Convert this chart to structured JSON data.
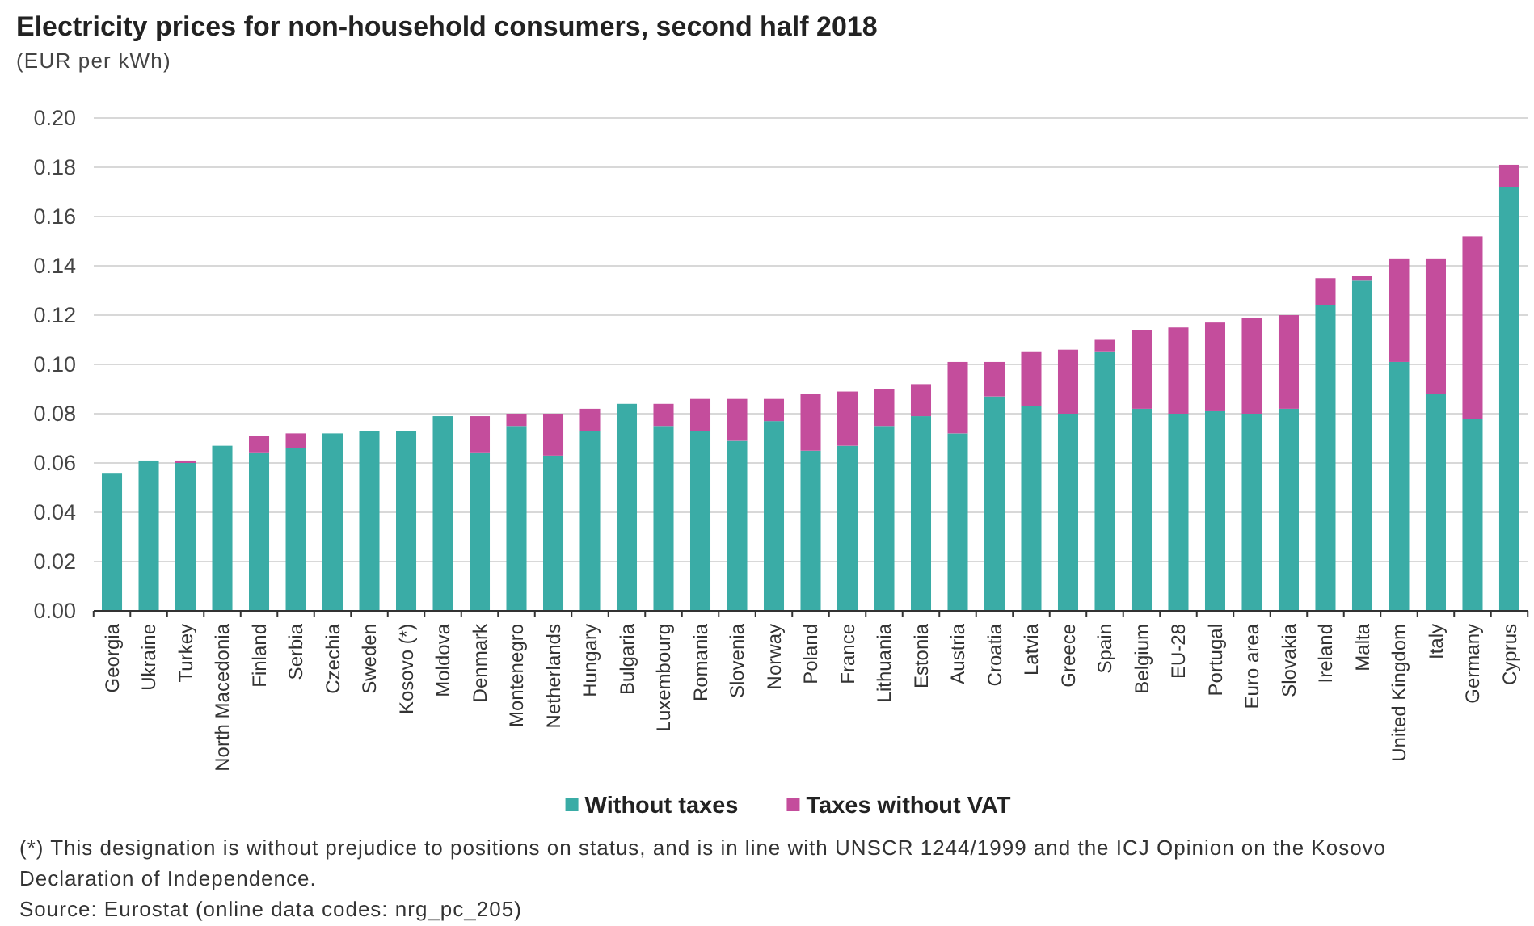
{
  "chart_data": {
    "type": "bar",
    "title": "Electricity prices for non-household consumers, second half 2018",
    "subtitle": "(EUR per kWh)",
    "categories": [
      "Georgia",
      "Ukraine",
      "Turkey",
      "North Macedonia",
      "Finland",
      "Serbia",
      "Czechia",
      "Sweden",
      "Kosovo (*)",
      "Moldova",
      "Denmark",
      "Montenegro",
      "Netherlands",
      "Hungary",
      "Bulgaria",
      "Luxembourg",
      "Romania",
      "Slovenia",
      "Norway",
      "Poland",
      "France",
      "Lithuania",
      "Estonia",
      "Austria",
      "Croatia",
      "Latvia",
      "Greece",
      "Spain",
      "Belgium",
      "EU-28",
      "Portugal",
      "Euro area",
      "Slovakia",
      "Ireland",
      "Malta",
      "United Kingdom",
      "Italy",
      "Germany",
      "Cyprus"
    ],
    "series": [
      {
        "name": "Without taxes",
        "color": "#3aaca6",
        "values": [
          0.056,
          0.061,
          0.06,
          0.067,
          0.064,
          0.066,
          0.072,
          0.073,
          0.073,
          0.079,
          0.064,
          0.075,
          0.063,
          0.073,
          0.084,
          0.075,
          0.073,
          0.069,
          0.077,
          0.065,
          0.067,
          0.075,
          0.079,
          0.072,
          0.087,
          0.083,
          0.08,
          0.105,
          0.082,
          0.08,
          0.081,
          0.08,
          0.082,
          0.124,
          0.134,
          0.101,
          0.088,
          0.078,
          0.172
        ]
      },
      {
        "name": "Taxes without VAT",
        "color": "#c44d9c",
        "values": [
          null,
          null,
          0.001,
          null,
          0.007,
          0.006,
          null,
          null,
          null,
          null,
          0.015,
          0.005,
          0.017,
          0.009,
          null,
          0.009,
          0.013,
          0.017,
          0.009,
          0.023,
          0.022,
          0.015,
          0.013,
          0.029,
          0.014,
          0.022,
          0.026,
          0.005,
          0.032,
          0.035,
          0.036,
          0.039,
          0.038,
          0.011,
          0.002,
          0.042,
          0.055,
          0.074,
          0.009
        ]
      }
    ],
    "stacked": true,
    "ylim": [
      0,
      0.2
    ],
    "yticks": [
      {
        "value": 0,
        "label": "0.00"
      },
      {
        "value": 0.02,
        "label": "0.02"
      },
      {
        "value": 0.04,
        "label": "0.04"
      },
      {
        "value": 0.06,
        "label": "0.06"
      },
      {
        "value": 0.08,
        "label": "0.08"
      },
      {
        "value": 0.1,
        "label": "0.10"
      },
      {
        "value": 0.12,
        "label": "0.12"
      },
      {
        "value": 0.14,
        "label": "0.14"
      },
      {
        "value": 0.16,
        "label": "0.16"
      },
      {
        "value": 0.18,
        "label": "0.18"
      },
      {
        "value": 0.2,
        "label": "0.20"
      }
    ],
    "grid": "y",
    "legend": "bottom",
    "annotations": [
      "(*) This designation is without prejudice to positions on status, and is in line with UNSCR 1244/1999 and the ICJ Opinion on the Kosovo Declaration of Independence.",
      "Source: Eurostat (online data codes: nrg_pc_205)"
    ]
  }
}
